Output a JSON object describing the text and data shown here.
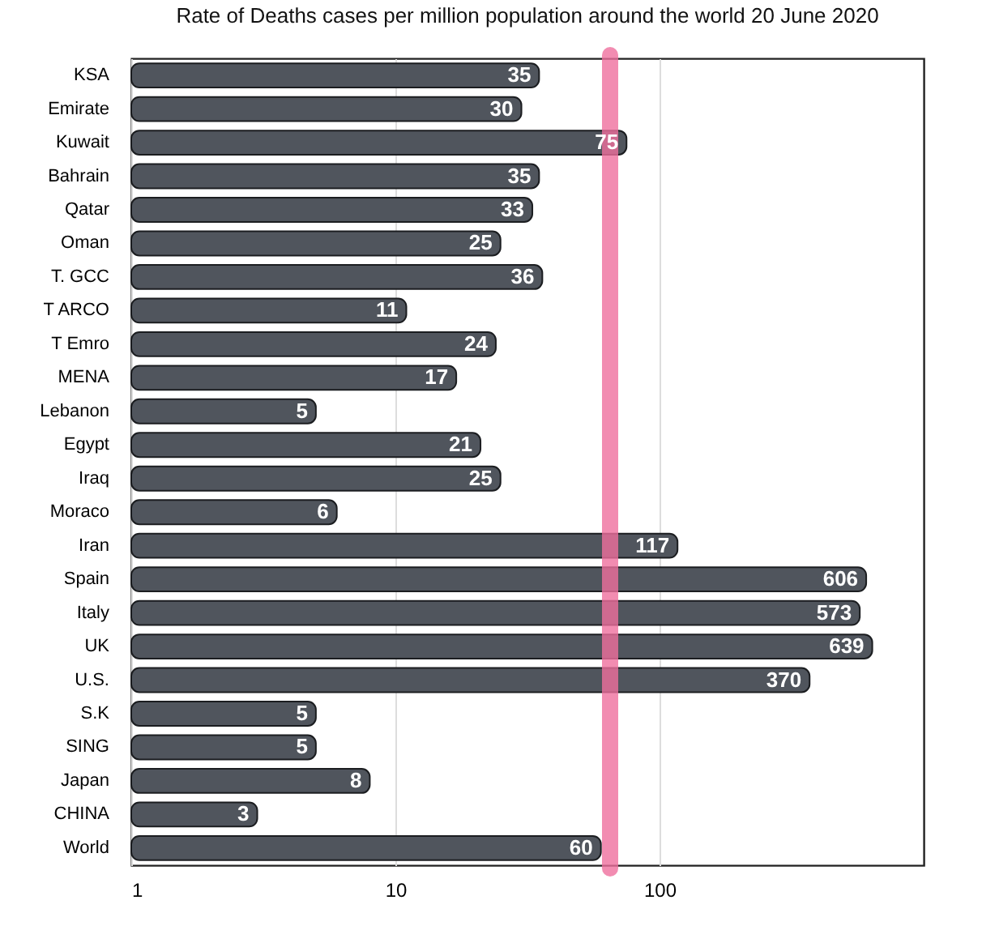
{
  "chart_data": {
    "type": "bar",
    "orientation": "horizontal",
    "title": "Rate of Deaths cases per million population around the world  20 June 2020",
    "categories": [
      "KSA",
      "Emirate",
      "Kuwait",
      "Bahrain",
      "Qatar",
      "Oman",
      "T. GCC",
      "T ARCO",
      "T Emro",
      "MENA",
      "Lebanon",
      "Egypt",
      "Iraq",
      "Moraco",
      "Iran",
      "Spain",
      "Italy",
      "UK",
      "U.S.",
      "S.K",
      "SING",
      "Japan",
      "CHINA",
      "World"
    ],
    "values": [
      35,
      30,
      75,
      35,
      33,
      25,
      36,
      11,
      24,
      17,
      5,
      21,
      25,
      6,
      117,
      606,
      573,
      639,
      370,
      5,
      5,
      8,
      3,
      60
    ],
    "color": "#50555d",
    "log": "x",
    "xlim": [
      1,
      1000
    ],
    "xticks": [
      1,
      10,
      100
    ],
    "grid": "x",
    "data_labels": true,
    "ref_lines": [
      {
        "axis": "x",
        "value": 65,
        "color": "#ef6f9d"
      }
    ]
  }
}
